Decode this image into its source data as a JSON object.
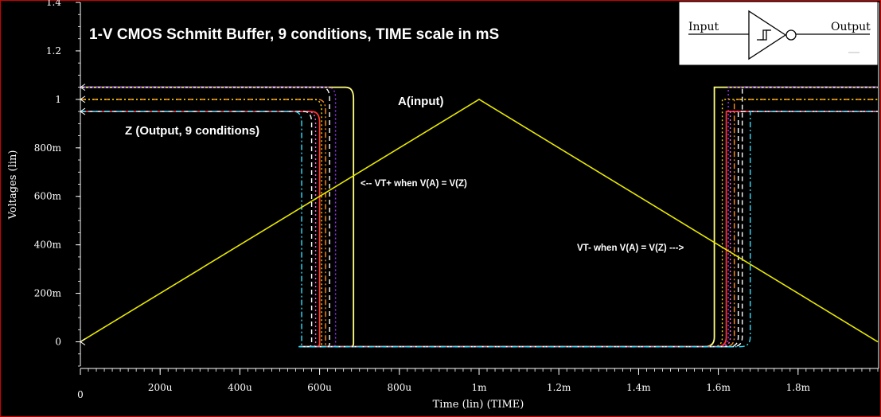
{
  "chart_data": {
    "type": "line",
    "title": "1-V CMOS Schmitt Buffer, 9 conditions, TIME scale in mS",
    "xlabel": "Time (lin) (TIME)",
    "ylabel": "Voltages (lin)",
    "xlim": [
      0,
      0.002
    ],
    "ylim": [
      -0.1,
      1.4
    ],
    "x_ticks": [
      {
        "value": 0,
        "label": "0"
      },
      {
        "value": 0.0002,
        "label": "200u"
      },
      {
        "value": 0.0004,
        "label": "400u"
      },
      {
        "value": 0.0006,
        "label": "600u"
      },
      {
        "value": 0.0008,
        "label": "800u"
      },
      {
        "value": 0.001,
        "label": "1m"
      },
      {
        "value": 0.0012,
        "label": "1.2m"
      },
      {
        "value": 0.0014,
        "label": "1.4m"
      },
      {
        "value": 0.0016,
        "label": "1.6m"
      },
      {
        "value": 0.0018,
        "label": "1.8m"
      }
    ],
    "y_ticks": [
      {
        "value": 0,
        "label": "0"
      },
      {
        "value": 0.2,
        "label": "200m"
      },
      {
        "value": 0.4,
        "label": "400m"
      },
      {
        "value": 0.6,
        "label": "600m"
      },
      {
        "value": 0.8,
        "label": "800m"
      },
      {
        "value": 1.0,
        "label": "1"
      },
      {
        "value": 1.2,
        "label": "1.2"
      },
      {
        "value": 1.4,
        "label": "1.4"
      }
    ],
    "grid": false,
    "input_series": {
      "color": "#e8e800",
      "x": [
        0,
        0.001,
        0.002
      ],
      "y": [
        0,
        1.0,
        0.0
      ]
    },
    "output_series": [
      {
        "color": "#ffff80",
        "dash": "solid",
        "vdd": 1.05,
        "fall_x": 0.000685,
        "rise_x": 0.00159
      },
      {
        "color": "#ffffff",
        "dash": "dash",
        "vdd": 1.05,
        "fall_x": 0.000625,
        "rise_x": 0.00166
      },
      {
        "color": "#9b30ff",
        "dash": "dot",
        "vdd": 1.05,
        "fall_x": 0.00064,
        "rise_x": 0.001625
      },
      {
        "color": "#ff8c1a",
        "dash": "dashdot",
        "vdd": 1.0,
        "fall_x": 0.000615,
        "rise_x": 0.00164
      },
      {
        "color": "#ffd700",
        "dash": "dot",
        "vdd": 1.0,
        "fall_x": 0.000605,
        "rise_x": 0.00161
      },
      {
        "color": "#ff3333",
        "dash": "solid",
        "vdd": 0.95,
        "fall_x": 0.0006,
        "rise_x": 0.00162
      },
      {
        "color": "#ff66cc",
        "dash": "dot",
        "vdd": 0.95,
        "fall_x": 0.00059,
        "rise_x": 0.00163
      },
      {
        "color": "#ffffff",
        "dash": "dash",
        "vdd": 0.95,
        "fall_x": 0.00058,
        "rise_x": 0.00165
      },
      {
        "color": "#33e0ff",
        "dash": "dashdot",
        "vdd": 0.95,
        "fall_x": 0.000555,
        "rise_x": 0.00168
      }
    ],
    "annotations": [
      {
        "text": "A(input)",
        "color": "#ffffff"
      },
      {
        "text": "Z (Output, 9 conditions)",
        "color": "#ffffff"
      },
      {
        "text": "<-- VT+ when V(A) = V(Z)",
        "color": "#ffffff"
      },
      {
        "text": "VT- when V(A) = V(Z) --->",
        "color": "#ffffff"
      }
    ]
  },
  "symbol_box": {
    "input_label": "Input",
    "output_label": "Output",
    "icon": "schmitt-buffer-inverter-symbol"
  },
  "colors": {
    "background": "#000000",
    "axis": "#ffffff",
    "border": "#d00000",
    "title": "#ffffff"
  }
}
